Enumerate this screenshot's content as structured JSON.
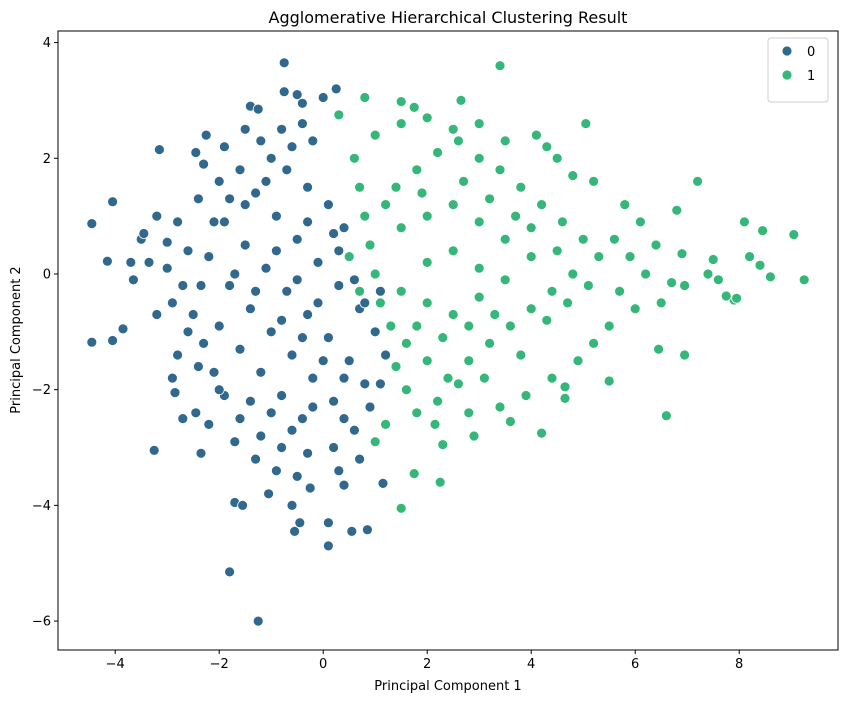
{
  "chart_data": {
    "type": "scatter",
    "title": "Agglomerative Hierarchical Clustering Result",
    "xlabel": "Principal Component 1",
    "ylabel": "Principal Component 2",
    "xlim": [
      -5.1,
      9.9
    ],
    "ylim": [
      -6.5,
      4.2
    ],
    "x_ticks": [
      -4,
      -2,
      0,
      2,
      4,
      6,
      8
    ],
    "y_ticks": [
      -6,
      -4,
      -2,
      0,
      2,
      4
    ],
    "grid": false,
    "legend_position": "top-right",
    "series": [
      {
        "name": "0",
        "color": "#31688e",
        "points": [
          [
            -4.45,
            0.87
          ],
          [
            -4.45,
            -1.18
          ],
          [
            -4.05,
            1.25
          ],
          [
            -4.05,
            -1.15
          ],
          [
            -4.15,
            0.22
          ],
          [
            -3.85,
            -0.95
          ],
          [
            -3.7,
            0.2
          ],
          [
            -3.65,
            -0.1
          ],
          [
            -3.5,
            0.6
          ],
          [
            -3.45,
            0.7
          ],
          [
            -3.35,
            0.2
          ],
          [
            -3.2,
            1.0
          ],
          [
            -3.25,
            -3.05
          ],
          [
            -3.15,
            2.15
          ],
          [
            -3.2,
            -0.7
          ],
          [
            -3.0,
            0.55
          ],
          [
            -2.9,
            -1.8
          ],
          [
            -2.85,
            -2.05
          ],
          [
            -1.8,
            -5.15
          ],
          [
            -1.25,
            -6.0
          ],
          [
            -0.75,
            3.65
          ],
          [
            -0.75,
            3.15
          ],
          [
            -0.5,
            3.1
          ],
          [
            0.25,
            3.2
          ],
          [
            0.0,
            3.05
          ],
          [
            -0.4,
            2.95
          ],
          [
            -1.4,
            2.9
          ],
          [
            -1.25,
            2.85
          ],
          [
            -2.25,
            2.4
          ],
          [
            -2.45,
            2.1
          ],
          [
            -2.7,
            -2.5
          ],
          [
            -2.45,
            -2.4
          ],
          [
            -2.35,
            -3.1
          ],
          [
            -1.7,
            -3.95
          ],
          [
            -1.55,
            -4.0
          ],
          [
            -1.05,
            -3.8
          ],
          [
            -0.6,
            -4.0
          ],
          [
            -0.45,
            -4.3
          ],
          [
            -0.55,
            -4.45
          ],
          [
            0.1,
            -4.3
          ],
          [
            0.1,
            -4.7
          ],
          [
            0.55,
            -4.45
          ],
          [
            0.85,
            -4.42
          ],
          [
            1.15,
            -3.62
          ],
          [
            -0.25,
            -3.7
          ],
          [
            0.4,
            -3.65
          ],
          [
            -2.0,
            1.6
          ],
          [
            -1.8,
            1.3
          ],
          [
            -2.1,
            0.9
          ],
          [
            -2.2,
            0.3
          ],
          [
            -2.35,
            -0.2
          ],
          [
            -2.5,
            -0.7
          ],
          [
            -2.3,
            -1.2
          ],
          [
            -2.1,
            -1.7
          ],
          [
            -1.9,
            -2.1
          ],
          [
            -1.6,
            -2.5
          ],
          [
            -1.2,
            -2.8
          ],
          [
            -0.8,
            -3.0
          ],
          [
            -0.3,
            -3.1
          ],
          [
            0.2,
            -3.0
          ],
          [
            0.6,
            -2.7
          ],
          [
            0.9,
            -2.3
          ],
          [
            1.1,
            -1.9
          ],
          [
            1.2,
            -1.4
          ],
          [
            -1.0,
            2.0
          ],
          [
            -0.6,
            2.2
          ],
          [
            -0.2,
            2.3
          ],
          [
            -1.6,
            1.8
          ],
          [
            -1.3,
            1.4
          ],
          [
            -0.9,
            1.0
          ],
          [
            -0.5,
            0.6
          ],
          [
            -0.1,
            0.2
          ],
          [
            0.3,
            -0.2
          ],
          [
            0.7,
            -0.6
          ],
          [
            1.0,
            -1.0
          ],
          [
            -1.5,
            0.5
          ],
          [
            -1.1,
            0.1
          ],
          [
            -0.7,
            -0.3
          ],
          [
            -0.3,
            -0.7
          ],
          [
            0.1,
            -1.1
          ],
          [
            0.5,
            -1.5
          ],
          [
            -1.8,
            -0.2
          ],
          [
            -1.4,
            -0.6
          ],
          [
            -1.0,
            -1.0
          ],
          [
            -0.6,
            -1.4
          ],
          [
            -0.2,
            -1.8
          ],
          [
            0.2,
            -2.2
          ],
          [
            -2.0,
            -0.9
          ],
          [
            -1.6,
            -1.3
          ],
          [
            -1.2,
            -1.7
          ],
          [
            -0.8,
            -2.1
          ],
          [
            -0.4,
            -2.5
          ],
          [
            -1.9,
            0.9
          ],
          [
            -1.5,
            1.2
          ],
          [
            -1.1,
            1.6
          ],
          [
            -0.7,
            1.8
          ],
          [
            -0.3,
            1.5
          ],
          [
            0.1,
            1.2
          ],
          [
            0.4,
            0.8
          ],
          [
            0.5,
            0.3
          ],
          [
            0.6,
            -0.1
          ],
          [
            0.8,
            -0.5
          ],
          [
            -2.6,
            0.4
          ],
          [
            -2.7,
            -0.2
          ],
          [
            -2.8,
            0.9
          ],
          [
            -2.4,
            1.3
          ],
          [
            -2.6,
            -1.0
          ],
          [
            -2.8,
            -1.4
          ],
          [
            -3.0,
            0.1
          ],
          [
            -2.9,
            -0.5
          ],
          [
            -2.2,
            -2.6
          ],
          [
            -1.7,
            -2.9
          ],
          [
            -1.3,
            -3.2
          ],
          [
            -0.9,
            -3.4
          ],
          [
            -0.5,
            -3.5
          ],
          [
            0.3,
            -3.4
          ],
          [
            0.7,
            -3.2
          ],
          [
            -1.2,
            2.3
          ],
          [
            -0.8,
            2.5
          ],
          [
            -0.4,
            2.6
          ],
          [
            -1.7,
            0.0
          ],
          [
            -1.3,
            -0.3
          ],
          [
            -0.9,
            0.4
          ],
          [
            -0.5,
            -0.1
          ],
          [
            -0.1,
            -0.5
          ],
          [
            0.3,
            0.4
          ],
          [
            -1.0,
            -2.4
          ],
          [
            -0.6,
            -2.7
          ],
          [
            -0.2,
            -2.3
          ],
          [
            0.4,
            -2.5
          ],
          [
            0.8,
            -1.9
          ],
          [
            1.1,
            -0.3
          ],
          [
            -2.3,
            1.9
          ],
          [
            -1.9,
            2.2
          ],
          [
            -1.5,
            2.5
          ],
          [
            -2.4,
            -1.6
          ],
          [
            -2.0,
            -2.0
          ],
          [
            -1.4,
            -2.2
          ],
          [
            -0.3,
            0.9
          ],
          [
            0.2,
            0.7
          ],
          [
            -0.8,
            -0.8
          ],
          [
            -0.4,
            -1.1
          ],
          [
            0.0,
            -1.5
          ],
          [
            0.4,
            -1.8
          ]
        ]
      },
      {
        "name": "1",
        "color": "#35b779",
        "points": [
          [
            3.4,
            3.6
          ],
          [
            5.05,
            2.6
          ],
          [
            7.2,
            1.6
          ],
          [
            6.8,
            1.1
          ],
          [
            8.1,
            0.9
          ],
          [
            8.45,
            0.75
          ],
          [
            9.05,
            0.68
          ],
          [
            9.25,
            -0.1
          ],
          [
            8.6,
            -0.05
          ],
          [
            8.4,
            0.15
          ],
          [
            8.2,
            0.3
          ],
          [
            7.9,
            -0.45
          ],
          [
            7.75,
            -0.38
          ],
          [
            7.95,
            -0.42
          ],
          [
            7.5,
            0.25
          ],
          [
            7.4,
            0.0
          ],
          [
            7.6,
            -0.1
          ],
          [
            6.9,
            0.35
          ],
          [
            6.95,
            -0.2
          ],
          [
            6.7,
            -0.15
          ],
          [
            6.4,
            0.5
          ],
          [
            6.5,
            -0.5
          ],
          [
            6.45,
            -1.3
          ],
          [
            6.95,
            -1.4
          ],
          [
            6.6,
            -2.45
          ],
          [
            5.5,
            -1.85
          ],
          [
            4.2,
            -2.75
          ],
          [
            4.65,
            -1.95
          ],
          [
            4.65,
            -2.15
          ],
          [
            3.6,
            -2.55
          ],
          [
            2.9,
            -2.8
          ],
          [
            2.3,
            -2.95
          ],
          [
            2.25,
            -3.6
          ],
          [
            1.75,
            -3.45
          ],
          [
            1.5,
            -4.05
          ],
          [
            2.15,
            -2.6
          ],
          [
            2.65,
            3.0
          ],
          [
            1.75,
            2.88
          ],
          [
            1.5,
            2.98
          ],
          [
            0.8,
            3.05
          ],
          [
            0.3,
            2.75
          ],
          [
            4.1,
            2.4
          ],
          [
            4.3,
            2.2
          ],
          [
            4.5,
            2.0
          ],
          [
            4.8,
            1.7
          ],
          [
            5.2,
            1.6
          ],
          [
            5.8,
            1.2
          ],
          [
            6.1,
            0.9
          ],
          [
            5.6,
            0.6
          ],
          [
            5.9,
            0.3
          ],
          [
            6.2,
            0.0
          ],
          [
            5.7,
            -0.3
          ],
          [
            6.0,
            -0.6
          ],
          [
            5.5,
            -0.9
          ],
          [
            5.2,
            -1.2
          ],
          [
            4.9,
            -1.5
          ],
          [
            4.4,
            -1.8
          ],
          [
            3.9,
            -2.1
          ],
          [
            3.4,
            -2.3
          ],
          [
            2.8,
            -2.4
          ],
          [
            2.2,
            -2.2
          ],
          [
            1.6,
            -2.0
          ],
          [
            1.2,
            -2.6
          ],
          [
            1.0,
            -2.9
          ],
          [
            1.4,
            1.5
          ],
          [
            1.8,
            1.8
          ],
          [
            2.2,
            2.1
          ],
          [
            2.6,
            2.3
          ],
          [
            3.0,
            2.0
          ],
          [
            3.4,
            1.8
          ],
          [
            3.8,
            1.5
          ],
          [
            4.2,
            1.2
          ],
          [
            4.6,
            0.9
          ],
          [
            5.0,
            0.6
          ],
          [
            5.3,
            0.3
          ],
          [
            4.8,
            0.0
          ],
          [
            4.4,
            -0.3
          ],
          [
            4.0,
            -0.6
          ],
          [
            3.6,
            -0.9
          ],
          [
            3.2,
            -1.2
          ],
          [
            2.8,
            -1.5
          ],
          [
            2.4,
            -1.8
          ],
          [
            2.0,
            -1.5
          ],
          [
            1.6,
            -1.2
          ],
          [
            1.3,
            -0.9
          ],
          [
            1.1,
            -0.5
          ],
          [
            1.0,
            0.0
          ],
          [
            0.9,
            0.5
          ],
          [
            0.8,
            1.0
          ],
          [
            0.7,
            1.5
          ],
          [
            0.6,
            2.0
          ],
          [
            1.0,
            2.4
          ],
          [
            1.5,
            2.6
          ],
          [
            2.0,
            2.7
          ],
          [
            2.5,
            2.5
          ],
          [
            3.0,
            2.6
          ],
          [
            3.5,
            2.3
          ],
          [
            1.5,
            0.8
          ],
          [
            2.0,
            1.0
          ],
          [
            2.5,
            1.2
          ],
          [
            3.0,
            0.9
          ],
          [
            3.5,
            0.6
          ],
          [
            4.0,
            0.3
          ],
          [
            1.5,
            -0.3
          ],
          [
            2.0,
            -0.5
          ],
          [
            2.5,
            -0.7
          ],
          [
            3.0,
            -0.4
          ],
          [
            3.5,
            -0.1
          ],
          [
            4.0,
            0.8
          ],
          [
            2.0,
            0.2
          ],
          [
            2.5,
            0.4
          ],
          [
            3.0,
            0.1
          ],
          [
            1.8,
            -0.9
          ],
          [
            2.3,
            -1.1
          ],
          [
            2.8,
            -0.9
          ],
          [
            3.3,
            -0.7
          ],
          [
            0.5,
            0.3
          ],
          [
            0.7,
            -0.3
          ],
          [
            1.2,
            1.2
          ],
          [
            1.9,
            1.4
          ],
          [
            2.7,
            1.6
          ],
          [
            3.2,
            1.3
          ],
          [
            4.3,
            -0.8
          ],
          [
            4.7,
            -0.5
          ],
          [
            5.1,
            -0.2
          ],
          [
            4.5,
            0.4
          ],
          [
            3.7,
            1.0
          ],
          [
            1.4,
            -1.6
          ],
          [
            1.8,
            -2.4
          ],
          [
            2.6,
            -1.9
          ],
          [
            3.1,
            -1.8
          ],
          [
            3.8,
            -1.4
          ]
        ]
      }
    ]
  }
}
